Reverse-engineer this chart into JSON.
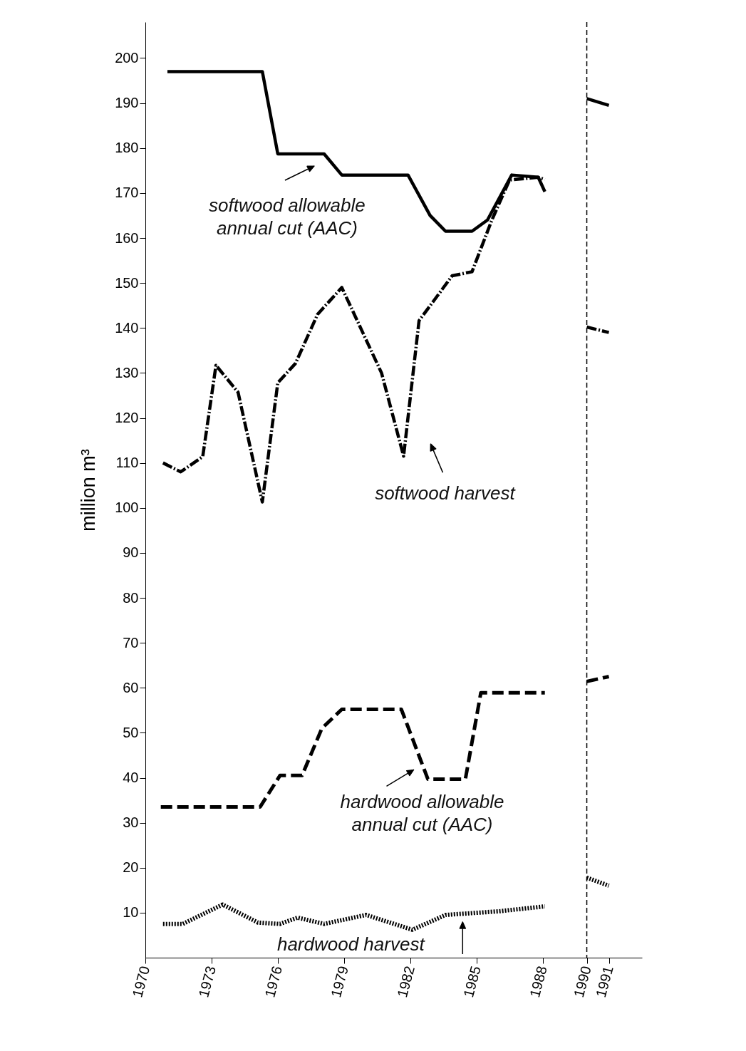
{
  "chart_data": {
    "type": "line",
    "ylabel": "million m³",
    "xlim": [
      1970,
      1992.5
    ],
    "ylim": [
      0,
      208
    ],
    "xticks": [
      1970,
      1973,
      1976,
      1979,
      1982,
      1985,
      1988,
      1990,
      1991
    ],
    "yticks": [
      10,
      20,
      30,
      40,
      50,
      60,
      70,
      80,
      90,
      100,
      110,
      120,
      130,
      140,
      150,
      160,
      170,
      180,
      190,
      200
    ],
    "grid": false,
    "annotations": [
      {
        "text": "softwood allowable annual cut (AAC)",
        "x": 1978.1,
        "y": 178.7
      },
      {
        "text": "softwood harvest",
        "x": 1981.7,
        "y": 111.5
      },
      {
        "text": "hardwood allowable annual cut (AAC)",
        "x": 1982.8,
        "y": 39.7
      },
      {
        "text": "hardwood harvest",
        "x": 1983.6,
        "y": 9.5
      }
    ],
    "ref_lines": [
      {
        "axis": "x",
        "value": 1990,
        "color": "#000000",
        "line_style": "dashed"
      }
    ],
    "series": [
      {
        "color": "#000000",
        "line_style": "solid",
        "x": [
          1971,
          1975.3,
          1976,
          1978.1,
          1978.9,
          1981.9,
          1982.9,
          1983.6,
          1984.8,
          1985.5,
          1986.6,
          1987.8,
          1988.1
        ],
        "values": [
          197,
          197,
          178.7,
          178.7,
          174,
          174,
          165,
          161.5,
          161.5,
          164,
          174,
          173.5,
          170.3
        ]
      },
      {
        "color": "#000000",
        "line_style": "dashdot",
        "x": [
          1970.8,
          1971.6,
          1972.6,
          1973.2,
          1974.2,
          1975.3,
          1976,
          1976.8,
          1977.8,
          1978.9,
          1980.7,
          1981.7,
          1982.4,
          1983.9,
          1984.8,
          1985.7,
          1986.5,
          1987.8,
          1988.1
        ],
        "values": [
          110,
          108,
          111.4,
          131.7,
          125.7,
          101.3,
          127.8,
          132.1,
          143,
          149,
          130,
          111.5,
          141.6,
          151.6,
          152.5,
          164,
          172.9,
          173.5,
          173
        ]
      },
      {
        "color": "#000000",
        "line_style": "dashed",
        "x": [
          1970.7,
          1975.2,
          1976.1,
          1977.1,
          1978,
          1978.9,
          1981.6,
          1982.8,
          1984.5,
          1985.2,
          1988.1
        ],
        "values": [
          33.5,
          33.5,
          40.5,
          40.5,
          51,
          55.2,
          55.2,
          39.7,
          39.7,
          58.9,
          58.9
        ]
      },
      {
        "color": "#000000",
        "line_style": "dotted",
        "x": [
          1970.8,
          1971.7,
          1973.5,
          1975.1,
          1976.1,
          1976.9,
          1978.1,
          1980,
          1982.1,
          1983.6,
          1986,
          1988.1
        ],
        "values": [
          7.5,
          7.5,
          11.8,
          7.8,
          7.5,
          8.9,
          7.5,
          9.5,
          6.2,
          9.5,
          10.3,
          11.4
        ]
      },
      {
        "color": "#000000",
        "line_style": "solid",
        "x": [
          1990,
          1991
        ],
        "values": [
          191,
          189.5
        ]
      },
      {
        "color": "#000000",
        "line_style": "dashdot",
        "x": [
          1990,
          1991
        ],
        "values": [
          140.2,
          139
        ]
      },
      {
        "color": "#000000",
        "line_style": "dashed",
        "x": [
          1990,
          1991
        ],
        "values": [
          61.4,
          62.5
        ]
      },
      {
        "color": "#000000",
        "line_style": "dotted",
        "x": [
          1990,
          1991
        ],
        "values": [
          17.8,
          16
        ]
      }
    ]
  }
}
